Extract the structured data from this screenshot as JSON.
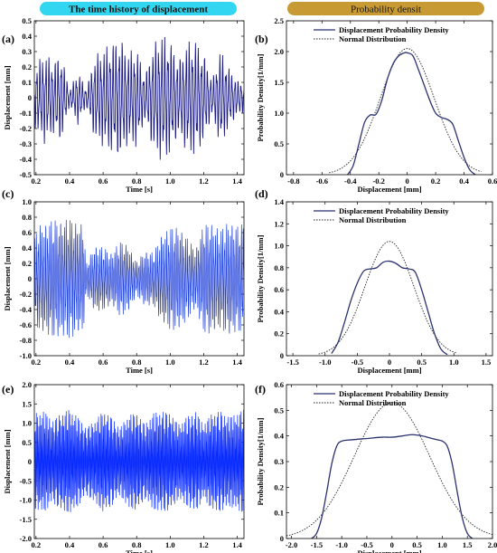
{
  "headers": {
    "left": "The time history of displacement",
    "right": "Probability densit",
    "left_color": "#33d6f0",
    "right_color": "#c79a33"
  },
  "colors": {
    "signal_dark": "#1a1a8c",
    "signal_blue": "#1f3fd8",
    "signal_bright": "#0a2cff",
    "pdf_line": "#2a3270",
    "normal_line": "#222222"
  },
  "chart_data": [
    {
      "id": "a",
      "panel_label": "(a)",
      "type": "line",
      "xlabel": "Time [s]",
      "ylabel": "Displacement [mm]",
      "xlim": [
        0.19,
        1.44
      ],
      "ylim": [
        -0.5,
        0.5
      ],
      "xticks": [
        0.2,
        0.4,
        0.6,
        0.8,
        1,
        1.2,
        1.4
      ],
      "yticks": [
        -0.5,
        -0.4,
        -0.3,
        -0.2,
        -0.1,
        0,
        0.1,
        0.2,
        0.3,
        0.4,
        0.5
      ],
      "signal": {
        "frequency_hz": 55,
        "envelope_points": [
          [
            0.19,
            0.2
          ],
          [
            0.25,
            0.3
          ],
          [
            0.3,
            0.24
          ],
          [
            0.35,
            0.3
          ],
          [
            0.4,
            0.05
          ],
          [
            0.45,
            0.18
          ],
          [
            0.5,
            0.06
          ],
          [
            0.55,
            0.28
          ],
          [
            0.6,
            0.32
          ],
          [
            0.7,
            0.41
          ],
          [
            0.75,
            0.3
          ],
          [
            0.8,
            0.33
          ],
          [
            0.85,
            0.15
          ],
          [
            0.9,
            0.36
          ],
          [
            0.95,
            0.42
          ],
          [
            1.0,
            0.38
          ],
          [
            1.05,
            0.25
          ],
          [
            1.1,
            0.37
          ],
          [
            1.15,
            0.38
          ],
          [
            1.2,
            0.3
          ],
          [
            1.25,
            0.12
          ],
          [
            1.3,
            0.32
          ],
          [
            1.35,
            0.2
          ],
          [
            1.4,
            0.12
          ],
          [
            1.44,
            0.1
          ]
        ]
      }
    },
    {
      "id": "b",
      "panel_label": "(b)",
      "type": "line",
      "xlabel": "Displacement [mm]",
      "ylabel": "Probability Density[1/mm]",
      "xlim": [
        -0.85,
        0.6
      ],
      "ylim": [
        0,
        2.5
      ],
      "xticks": [
        -0.8,
        -0.6,
        -0.4,
        -0.2,
        0,
        0.2,
        0.4,
        0.6
      ],
      "yticks": [
        0,
        0.5,
        1,
        1.5,
        2,
        2.5
      ],
      "legend": [
        "Displacement Probability Density",
        "Normal Distribution"
      ],
      "legend_position": "top-right",
      "series": [
        {
          "name": "Displacement Probability Density",
          "x": [
            -0.42,
            -0.38,
            -0.34,
            -0.3,
            -0.26,
            -0.22,
            -0.18,
            -0.14,
            -0.1,
            -0.06,
            -0.02,
            0,
            0.04,
            0.08,
            0.12,
            0.16,
            0.2,
            0.24,
            0.28,
            0.32,
            0.36,
            0.4,
            0.44,
            0.48
          ],
          "y": [
            0,
            0.15,
            0.5,
            0.85,
            0.97,
            0.98,
            1.2,
            1.55,
            1.8,
            1.93,
            1.98,
            1.98,
            1.93,
            1.7,
            1.45,
            1.2,
            1.0,
            0.93,
            0.9,
            0.82,
            0.55,
            0.28,
            0.08,
            0
          ]
        },
        {
          "name": "Normal Distribution",
          "mean": 0,
          "sd": 0.19,
          "peak": 2.05,
          "x_range": [
            -0.55,
            0.52
          ]
        }
      ]
    },
    {
      "id": "c",
      "panel_label": "(c)",
      "type": "line",
      "xlabel": "Time [s]",
      "ylabel": "Displacement [mm]",
      "xlim": [
        0.19,
        1.44
      ],
      "ylim": [
        -1.0,
        1.0
      ],
      "xticks": [
        0.2,
        0.4,
        0.6,
        0.8,
        1,
        1.2,
        1.4
      ],
      "yticks": [
        -1.0,
        -0.8,
        -0.6,
        -0.4,
        -0.2,
        0,
        0.2,
        0.4,
        0.6,
        0.8,
        1.0
      ],
      "signal": {
        "frequency_hz": 90,
        "envelope_points": [
          [
            0.19,
            0.55
          ],
          [
            0.22,
            0.72
          ],
          [
            0.3,
            0.78
          ],
          [
            0.4,
            0.8
          ],
          [
            0.45,
            0.75
          ],
          [
            0.48,
            0.75
          ],
          [
            0.5,
            0.2
          ],
          [
            0.55,
            0.45
          ],
          [
            0.6,
            0.42
          ],
          [
            0.65,
            0.35
          ],
          [
            0.7,
            0.5
          ],
          [
            0.75,
            0.45
          ],
          [
            0.8,
            0.22
          ],
          [
            0.85,
            0.38
          ],
          [
            0.9,
            0.35
          ],
          [
            0.95,
            0.6
          ],
          [
            1.0,
            0.68
          ],
          [
            1.05,
            0.7
          ],
          [
            1.1,
            0.55
          ],
          [
            1.15,
            0.4
          ],
          [
            1.2,
            0.72
          ],
          [
            1.25,
            0.75
          ],
          [
            1.3,
            0.65
          ],
          [
            1.35,
            0.78
          ],
          [
            1.4,
            0.7
          ],
          [
            1.44,
            0.75
          ]
        ]
      }
    },
    {
      "id": "d",
      "panel_label": "(d)",
      "type": "line",
      "xlabel": "Displacement [mm]",
      "ylabel": "Probability Density[1/mm]",
      "xlim": [
        -1.6,
        1.6
      ],
      "ylim": [
        0,
        1.4
      ],
      "xticks": [
        -1.5,
        -1,
        -0.5,
        0,
        0.5,
        1,
        1.5
      ],
      "yticks": [
        0,
        0.2,
        0.4,
        0.6,
        0.8,
        1.0,
        1.2,
        1.4
      ],
      "legend": [
        "Displacement Probability Density",
        "Normal Distribution"
      ],
      "legend_position": "top-right",
      "series": [
        {
          "name": "Displacement Probability Density",
          "x": [
            -0.9,
            -0.8,
            -0.7,
            -0.6,
            -0.5,
            -0.4,
            -0.3,
            -0.2,
            -0.1,
            0,
            0.1,
            0.2,
            0.3,
            0.4,
            0.5,
            0.6,
            0.7,
            0.8,
            0.9
          ],
          "y": [
            0.02,
            0.12,
            0.3,
            0.5,
            0.66,
            0.77,
            0.79,
            0.8,
            0.85,
            0.86,
            0.84,
            0.8,
            0.79,
            0.76,
            0.6,
            0.4,
            0.2,
            0.06,
            0.01
          ]
        },
        {
          "name": "Normal Distribution",
          "mean": 0,
          "sd": 0.38,
          "peak": 1.04,
          "x_range": [
            -1.1,
            1.05
          ]
        }
      ]
    },
    {
      "id": "e",
      "panel_label": "(e)",
      "type": "line",
      "xlabel": "Time [s]",
      "ylabel": "Displacement [mm]",
      "xlim": [
        0.19,
        1.44
      ],
      "ylim": [
        -2.0,
        2.0
      ],
      "xticks": [
        0.2,
        0.4,
        0.6,
        0.8,
        1,
        1.2,
        1.4
      ],
      "yticks": [
        -2.0,
        -1.5,
        -1.0,
        -0.5,
        0,
        0.5,
        1.0,
        1.5,
        2.0
      ],
      "signal": {
        "frequency_hz": 140,
        "envelope_points": [
          [
            0.19,
            1.3
          ],
          [
            0.25,
            1.35
          ],
          [
            0.3,
            1.1
          ],
          [
            0.35,
            1.3
          ],
          [
            0.4,
            1.4
          ],
          [
            0.45,
            1.2
          ],
          [
            0.5,
            0.9
          ],
          [
            0.55,
            1.1
          ],
          [
            0.6,
            1.35
          ],
          [
            0.65,
            1.2
          ],
          [
            0.7,
            0.9
          ],
          [
            0.75,
            1.25
          ],
          [
            0.8,
            1.3
          ],
          [
            0.85,
            1.0
          ],
          [
            0.9,
            1.3
          ],
          [
            0.95,
            1.35
          ],
          [
            1.0,
            1.3
          ],
          [
            1.05,
            1.0
          ],
          [
            1.1,
            1.2
          ],
          [
            1.15,
            1.35
          ],
          [
            1.2,
            1.0
          ],
          [
            1.25,
            1.3
          ],
          [
            1.3,
            1.35
          ],
          [
            1.35,
            1.2
          ],
          [
            1.4,
            1.3
          ],
          [
            1.44,
            1.4
          ]
        ]
      }
    },
    {
      "id": "f",
      "panel_label": "(f)",
      "type": "line",
      "xlabel": "Displacement [mm]",
      "ylabel": "Probability Density[1/mm]",
      "xlim": [
        -2.1,
        2.0
      ],
      "ylim": [
        0,
        0.6
      ],
      "xticks": [
        -2.0,
        -1.5,
        -1.0,
        -0.5,
        0,
        0.5,
        1.0,
        1.5,
        2.0
      ],
      "yticks": [
        0,
        0.1,
        0.2,
        0.3,
        0.4,
        0.5,
        0.6
      ],
      "legend": [
        "Displacement Probability Density",
        "Normal Distribution"
      ],
      "legend_position": "top-right",
      "series": [
        {
          "name": "Displacement Probability Density",
          "x": [
            -1.6,
            -1.5,
            -1.4,
            -1.3,
            -1.2,
            -1.1,
            -1.0,
            -0.8,
            -0.5,
            -0.2,
            0,
            0.2,
            0.4,
            0.6,
            0.8,
            0.9,
            1.0,
            1.1,
            1.2,
            1.3,
            1.4,
            1.5,
            1.6
          ],
          "y": [
            0,
            0.02,
            0.08,
            0.18,
            0.29,
            0.36,
            0.38,
            0.385,
            0.39,
            0.395,
            0.395,
            0.4,
            0.405,
            0.4,
            0.39,
            0.385,
            0.38,
            0.36,
            0.29,
            0.18,
            0.08,
            0.02,
            0
          ]
        },
        {
          "name": "Normal Distribution",
          "mean": 0,
          "sd": 0.75,
          "peak": 0.53,
          "x_range": [
            -2.1,
            2.0
          ]
        }
      ]
    }
  ]
}
